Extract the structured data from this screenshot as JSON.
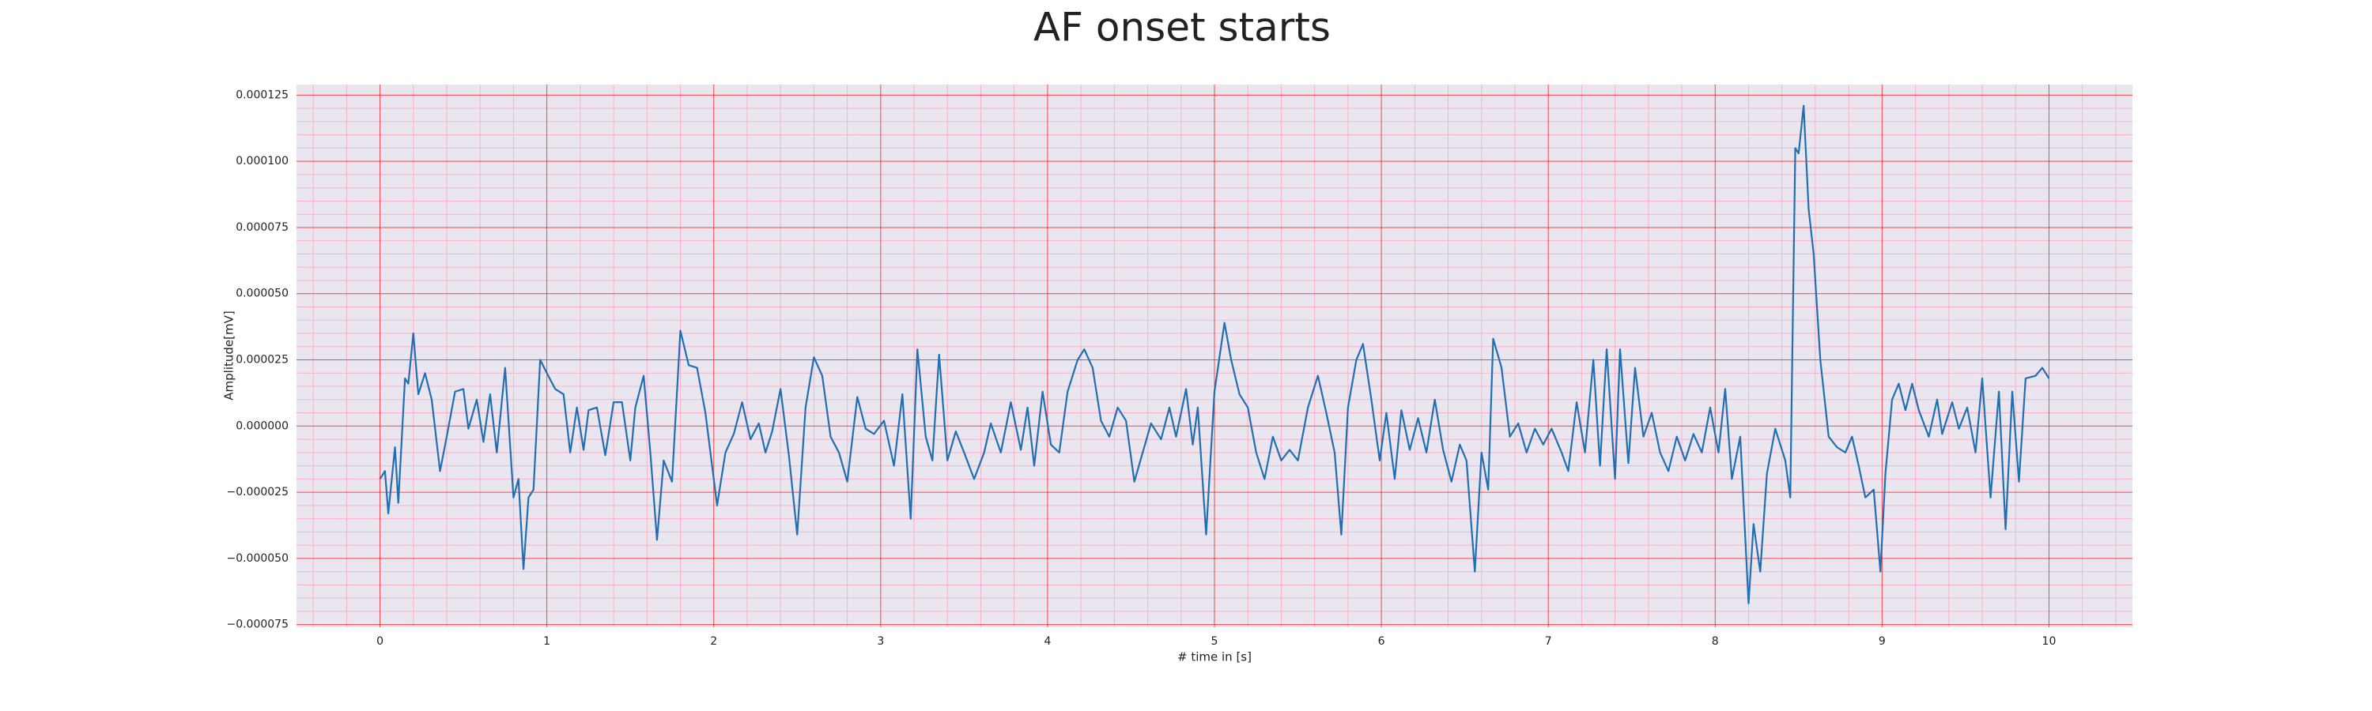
{
  "chart_data": {
    "type": "line",
    "title": "AF onset starts",
    "x_label": "# time in [s]",
    "y_label": "Amplitude[mV]",
    "xlim": [
      -0.5,
      10.5
    ],
    "ylim": [
      -7.6e-05,
      0.000129
    ],
    "xticks": [
      0,
      1,
      2,
      3,
      4,
      5,
      6,
      7,
      8,
      9,
      10
    ],
    "yticks": [
      {
        "value": -7.5e-05,
        "label": "−0.000075"
      },
      {
        "value": -5e-05,
        "label": "−0.000050"
      },
      {
        "value": -2.5e-05,
        "label": "−0.000025"
      },
      {
        "value": 0,
        "label": "0.000000"
      },
      2.5e-05,
      {
        "value": 5e-05,
        "label": "0.000050"
      },
      7.5e-05,
      {
        "value": 0.0001,
        "label": "0.000100"
      },
      0.000125
    ],
    "grid": true,
    "grid_color": "#ff0000",
    "minor_grid": true,
    "minor_grid_color": "#ffb0c8",
    "background": "#eae6f0",
    "series": [
      {
        "color": "#1f6fb2",
        "x": [
          0.0,
          0.03,
          0.05,
          0.09,
          0.11,
          0.15,
          0.17,
          0.2,
          0.23,
          0.27,
          0.31,
          0.36,
          0.4,
          0.45,
          0.5,
          0.53,
          0.58,
          0.62,
          0.66,
          0.7,
          0.75,
          0.8,
          0.83,
          0.86,
          0.89,
          0.92,
          0.96,
          1.0,
          1.05,
          1.1,
          1.14,
          1.18,
          1.22,
          1.25,
          1.3,
          1.35,
          1.4,
          1.45,
          1.5,
          1.53,
          1.58,
          1.62,
          1.66,
          1.7,
          1.75,
          1.8,
          1.85,
          1.9,
          1.95,
          2.02,
          2.07,
          2.12,
          2.17,
          2.22,
          2.27,
          2.31,
          2.35,
          2.4,
          2.45,
          2.5,
          2.55,
          2.6,
          2.65,
          2.7,
          2.75,
          2.8,
          2.86,
          2.91,
          2.96,
          3.02,
          3.08,
          3.13,
          3.18,
          3.22,
          3.27,
          3.31,
          3.35,
          3.4,
          3.45,
          3.5,
          3.56,
          3.62,
          3.66,
          3.72,
          3.78,
          3.84,
          3.88,
          3.92,
          3.97,
          4.02,
          4.07,
          4.12,
          4.18,
          4.22,
          4.27,
          4.32,
          4.37,
          4.42,
          4.47,
          4.52,
          4.57,
          4.62,
          4.68,
          4.73,
          4.77,
          4.83,
          4.87,
          4.9,
          4.95,
          5.0,
          5.06,
          5.1,
          5.15,
          5.2,
          5.25,
          5.3,
          5.35,
          5.4,
          5.45,
          5.5,
          5.56,
          5.62,
          5.67,
          5.72,
          5.76,
          5.8,
          5.85,
          5.89,
          5.94,
          5.99,
          6.03,
          6.08,
          6.12,
          6.17,
          6.22,
          6.27,
          6.32,
          6.37,
          6.42,
          6.47,
          6.51,
          6.56,
          6.6,
          6.64,
          6.67,
          6.72,
          6.77,
          6.82,
          6.87,
          6.92,
          6.97,
          7.02,
          7.08,
          7.12,
          7.17,
          7.22,
          7.27,
          7.31,
          7.35,
          7.4,
          7.43,
          7.48,
          7.52,
          7.57,
          7.62,
          7.67,
          7.72,
          7.77,
          7.82,
          7.87,
          7.92,
          7.97,
          8.02,
          8.06,
          8.1,
          8.15,
          8.2,
          8.23,
          8.27,
          8.31,
          8.36,
          8.42,
          8.45,
          8.48,
          8.5,
          8.53,
          8.56,
          8.59,
          8.63,
          8.68,
          8.73,
          8.78,
          8.82,
          8.86,
          8.9,
          8.95,
          8.99,
          9.02,
          9.06,
          9.1,
          9.14,
          9.18,
          9.22,
          9.28,
          9.33,
          9.36,
          9.42,
          9.46,
          9.51,
          9.56,
          9.6,
          9.65,
          9.7,
          9.74,
          9.78,
          9.82,
          9.86,
          9.92,
          9.96,
          10.0
        ],
        "values": [
          -2e-05,
          -1.7e-05,
          -3.3e-05,
          -8e-06,
          -2.9e-05,
          1.8e-05,
          1.6e-05,
          3.5e-05,
          1.2e-05,
          2e-05,
          1e-05,
          -1.7e-05,
          -4e-06,
          1.3e-05,
          1.4e-05,
          -1e-06,
          1e-05,
          -6e-06,
          1.2e-05,
          -1e-05,
          2.2e-05,
          -2.7e-05,
          -2e-05,
          -5.4e-05,
          -2.7e-05,
          -2.4e-05,
          2.5e-05,
          2e-05,
          1.4e-05,
          1.2e-05,
          -1e-05,
          7e-06,
          -9e-06,
          6e-06,
          7e-06,
          -1.1e-05,
          9e-06,
          9e-06,
          -1.3e-05,
          7e-06,
          1.9e-05,
          -1e-05,
          -4.3e-05,
          -1.3e-05,
          -2.1e-05,
          3.6e-05,
          2.3e-05,
          2.2e-05,
          5e-06,
          -3e-05,
          -1e-05,
          -3e-06,
          9e-06,
          -5e-06,
          1e-06,
          -1e-05,
          -2e-06,
          1.4e-05,
          -1.1e-05,
          -4.1e-05,
          7e-06,
          2.6e-05,
          1.9e-05,
          -4e-06,
          -1e-05,
          -2.1e-05,
          1.1e-05,
          -1e-06,
          -3e-06,
          2e-06,
          -1.5e-05,
          1.2e-05,
          -3.5e-05,
          2.9e-05,
          -4e-06,
          -1.3e-05,
          2.7e-05,
          -1.3e-05,
          -2e-06,
          -1e-05,
          -2e-05,
          -1e-05,
          1e-06,
          -1e-05,
          9e-06,
          -9e-06,
          7e-06,
          -1.5e-05,
          1.3e-05,
          -7e-06,
          -1e-05,
          1.3e-05,
          2.5e-05,
          2.9e-05,
          2.2e-05,
          2e-06,
          -4e-06,
          7e-06,
          2e-06,
          -2.1e-05,
          -1e-05,
          1e-06,
          -5e-06,
          7e-06,
          -4e-06,
          1.4e-05,
          -7e-06,
          7e-06,
          -4.1e-05,
          1.3e-05,
          3.9e-05,
          2.5e-05,
          1.2e-05,
          7e-06,
          -1e-05,
          -2e-05,
          -4e-06,
          -1.3e-05,
          -9e-06,
          -1.3e-05,
          7e-06,
          1.9e-05,
          5e-06,
          -1e-05,
          -4.1e-05,
          7e-06,
          2.5e-05,
          3.1e-05,
          1e-05,
          -1.3e-05,
          5e-06,
          -2e-05,
          6e-06,
          -9e-06,
          3e-06,
          -1e-05,
          1e-05,
          -9e-06,
          -2.1e-05,
          -7e-06,
          -1.3e-05,
          -5.5e-05,
          -1e-05,
          -2.4e-05,
          3.3e-05,
          2.2e-05,
          -4e-06,
          1e-06,
          -1e-05,
          -1e-06,
          -7e-06,
          -1e-06,
          -1e-05,
          -1.7e-05,
          9e-06,
          -1e-05,
          2.5e-05,
          -1.5e-05,
          2.9e-05,
          -2e-05,
          2.9e-05,
          -1.4e-05,
          2.2e-05,
          -4e-06,
          5e-06,
          -1e-05,
          -1.7e-05,
          -4e-06,
          -1.3e-05,
          -3e-06,
          -1e-05,
          7e-06,
          -1e-05,
          1.4e-05,
          -2e-05,
          -4e-06,
          -6.7e-05,
          -3.7e-05,
          -5.5e-05,
          -1.8e-05,
          -1e-06,
          -1.3e-05,
          -2.7e-05,
          0.000105,
          0.000103,
          0.000121,
          8.2e-05,
          6.5e-05,
          2.5e-05,
          -4e-06,
          -8e-06,
          -1e-05,
          -4e-06,
          -1.5e-05,
          -2.7e-05,
          -2.4e-05,
          -5.5e-05,
          -1.8e-05,
          1e-05,
          1.6e-05,
          6e-06,
          1.6e-05,
          6e-06,
          -4e-06,
          1e-05,
          -3e-06,
          9e-06,
          -1e-06,
          7e-06,
          -1e-05,
          1.8e-05,
          -2.7e-05,
          1.3e-05,
          -3.9e-05,
          1.3e-05,
          -2.1e-05,
          1.8e-05,
          1.9e-05,
          2.2e-05,
          1.8e-05
        ]
      }
    ]
  }
}
